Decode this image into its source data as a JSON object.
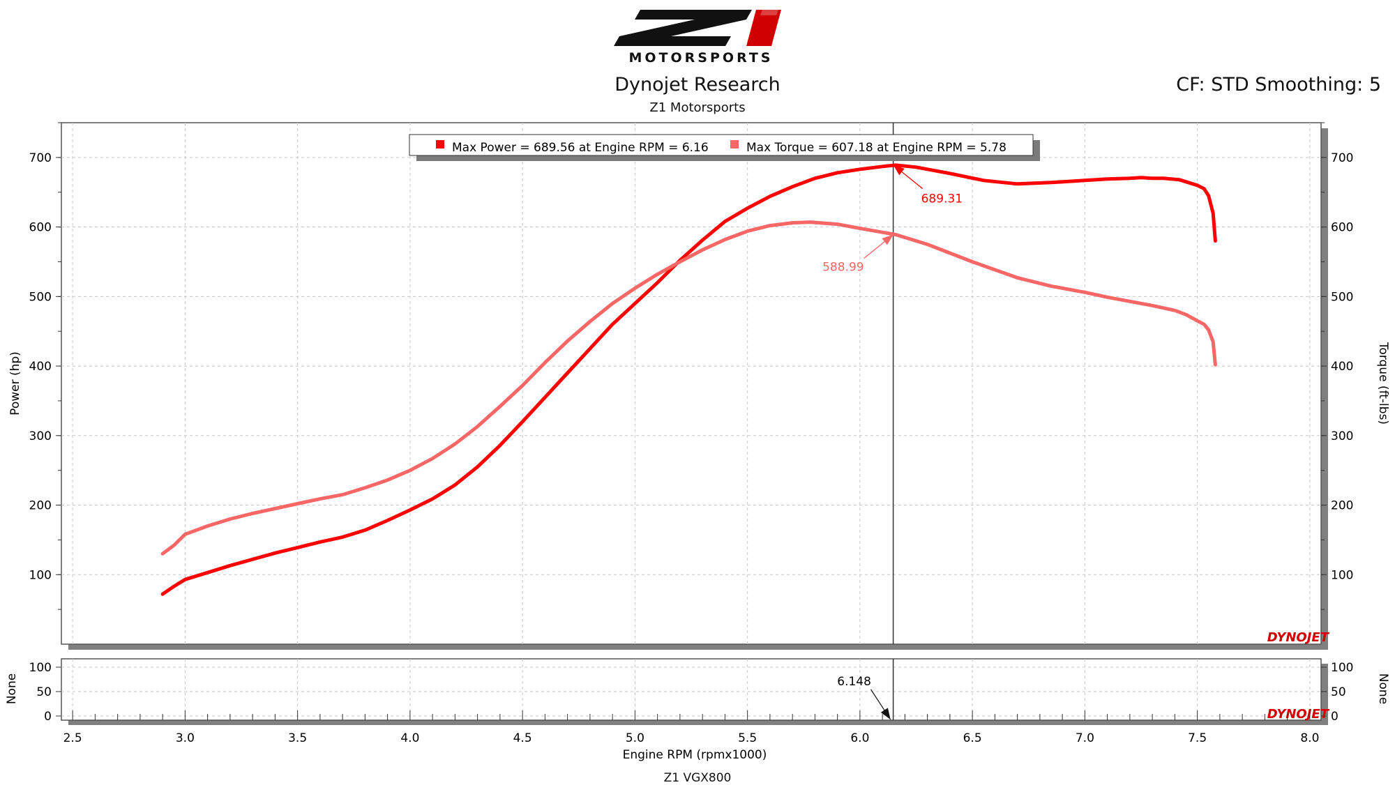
{
  "header": {
    "logo_text": "Z1",
    "logo_subtext": "MOTORSPORTS",
    "title": "Dynojet Research",
    "subtitle": "Z1 Motorsports",
    "settings": "CF: STD Smoothing: 5"
  },
  "footer": {
    "vehicle": "Z1 VGX800"
  },
  "brand": {
    "watermark": "DYNOJET"
  },
  "colors": {
    "power": "#ff0000",
    "torque": "#f86666"
  },
  "chart_data": {
    "type": "line",
    "legend": {
      "power": "Max Power = 689.56 at Engine RPM = 6.16",
      "torque": "Max Torque = 607.18 at Engine RPM = 5.78"
    },
    "xlabel": "Engine RPM (rpmx1000)",
    "ylabel_left": "Power (hp)",
    "ylabel_right": "Torque (ft-lbs)",
    "xlim": [
      2.45,
      8.05
    ],
    "ylim": [
      0,
      750
    ],
    "x_ticks": [
      "2.5",
      "3.0",
      "3.5",
      "4.0",
      "4.5",
      "5.0",
      "5.5",
      "6.0",
      "6.5",
      "7.0",
      "7.5",
      "8.0"
    ],
    "y_ticks": [
      "100",
      "200",
      "300",
      "400",
      "500",
      "600",
      "700"
    ],
    "grid": true,
    "series": [
      {
        "key": "power",
        "x": [
          2.9,
          2.95,
          3.0,
          3.1,
          3.2,
          3.3,
          3.4,
          3.5,
          3.6,
          3.7,
          3.8,
          3.9,
          4.0,
          4.1,
          4.2,
          4.3,
          4.4,
          4.5,
          4.6,
          4.7,
          4.8,
          4.9,
          5.0,
          5.1,
          5.2,
          5.3,
          5.4,
          5.5,
          5.6,
          5.7,
          5.8,
          5.9,
          6.0,
          6.1,
          6.16,
          6.25,
          6.4,
          6.55,
          6.7,
          6.85,
          7.0,
          7.1,
          7.2,
          7.25,
          7.3,
          7.35,
          7.42,
          7.45,
          7.5,
          7.53,
          7.55,
          7.57,
          7.58
        ],
        "values": [
          72,
          83,
          93,
          103,
          113,
          122,
          131,
          139,
          147,
          154,
          164,
          178,
          193,
          209,
          229,
          255,
          286,
          320,
          355,
          390,
          425,
          460,
          490,
          520,
          552,
          581,
          608,
          627,
          644,
          658,
          670,
          678,
          683,
          687,
          689,
          686,
          677,
          667,
          662,
          664,
          667,
          669,
          670,
          671,
          670,
          670,
          668,
          665,
          660,
          655,
          645,
          620,
          580
        ]
      },
      {
        "key": "torque",
        "x": [
          2.9,
          2.95,
          3.0,
          3.1,
          3.2,
          3.3,
          3.4,
          3.5,
          3.6,
          3.7,
          3.8,
          3.9,
          4.0,
          4.1,
          4.2,
          4.3,
          4.4,
          4.5,
          4.6,
          4.7,
          4.8,
          4.9,
          5.0,
          5.1,
          5.2,
          5.3,
          5.4,
          5.5,
          5.6,
          5.7,
          5.78,
          5.9,
          6.0,
          6.16,
          6.3,
          6.5,
          6.7,
          6.85,
          7.0,
          7.1,
          7.2,
          7.3,
          7.4,
          7.45,
          7.5,
          7.53,
          7.55,
          7.57,
          7.58
        ],
        "values": [
          130,
          142,
          158,
          170,
          180,
          188,
          195,
          202,
          209,
          215,
          225,
          236,
          250,
          267,
          288,
          313,
          342,
          372,
          405,
          436,
          464,
          490,
          512,
          532,
          550,
          567,
          582,
          594,
          602,
          606,
          607,
          604,
          598,
          589,
          575,
          550,
          527,
          515,
          506,
          499,
          493,
          487,
          480,
          474,
          465,
          460,
          452,
          435,
          402
        ]
      }
    ],
    "annotations": [
      {
        "series": "power",
        "label": "689.31",
        "x": 6.148,
        "y": 689.31
      },
      {
        "series": "torque",
        "label": "588.99",
        "x": 6.148,
        "y": 588.99
      }
    ],
    "cursor_x": 6.148,
    "sub_panel": {
      "ylabel": "None",
      "ylim": [
        0,
        100
      ],
      "y_ticks": [
        "0",
        "50",
        "100"
      ],
      "cursor_label": "6.148"
    }
  }
}
